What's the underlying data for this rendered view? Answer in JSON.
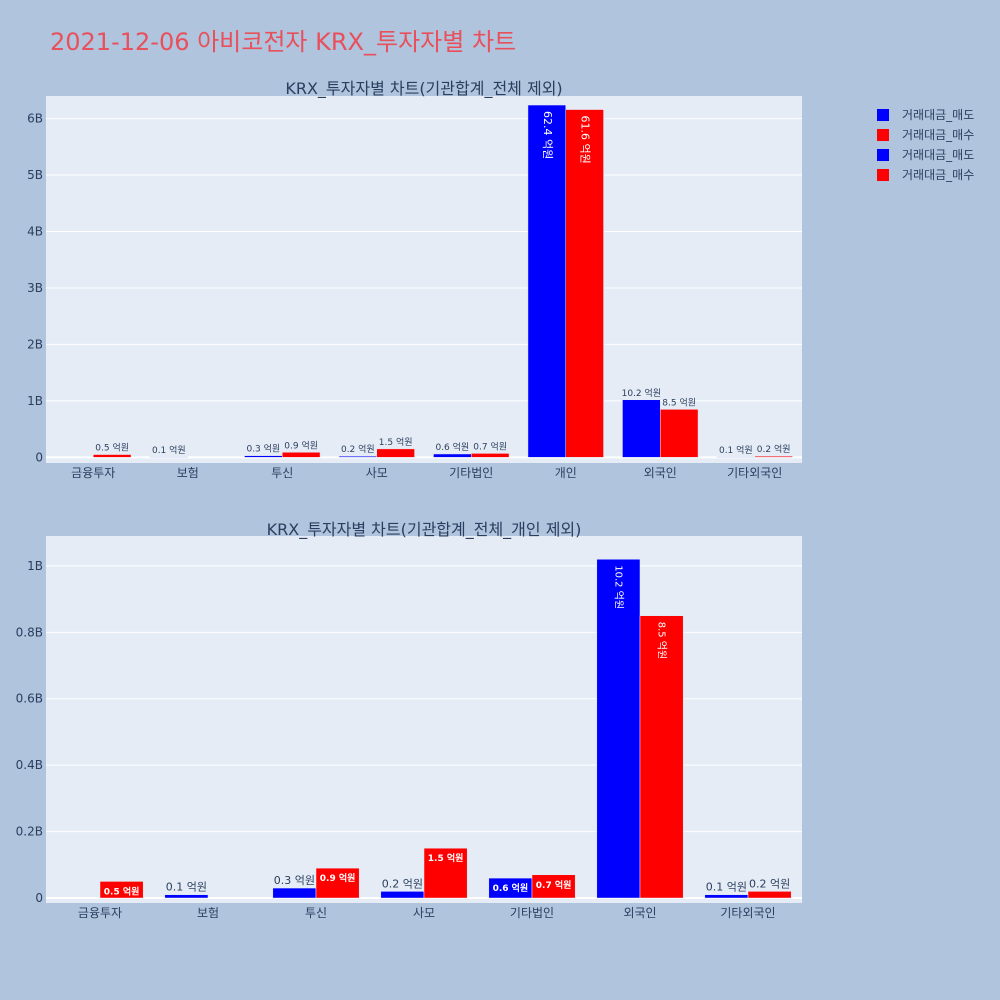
{
  "title": "2021-12-06 아비코전자 KRX_투자자별 차트",
  "colors": {
    "sell": "#0000ff",
    "buy": "#ff0000",
    "plot_bg": "#e5ecf6",
    "page_bg": "#b0c4de",
    "title": "#e8505b"
  },
  "legend": [
    {
      "label": "거래대금_매도",
      "color": "#0000ff"
    },
    {
      "label": "거래대금_매수",
      "color": "#ff0000"
    },
    {
      "label": "거래대금_매도",
      "color": "#0000ff"
    },
    {
      "label": "거래대금_매수",
      "color": "#ff0000"
    }
  ],
  "chart_data": [
    {
      "type": "bar",
      "title": "KRX_투자자별 차트(기관합계_전체 제외)",
      "categories": [
        "금융투자",
        "보험",
        "투신",
        "사모",
        "기타법인",
        "개인",
        "외국인",
        "기타외국인"
      ],
      "ylim": [
        -0.1,
        6.4
      ],
      "yticks": [
        0,
        1,
        2,
        3,
        4,
        5,
        6
      ],
      "ytick_labels": [
        "0",
        "1B",
        "2B",
        "3B",
        "4B",
        "5B",
        "6B"
      ],
      "series": [
        {
          "name": "거래대금_매도",
          "color": "#0000ff",
          "values": [
            0,
            0.01,
            0.03,
            0.02,
            0.06,
            6.24,
            1.02,
            0.01
          ],
          "labels": [
            "",
            "0.1 억원",
            "0.3 억원",
            "0.2 억원",
            "0.6 억원",
            "62.4 억원",
            "10.2 억원",
            "0.1 억원"
          ]
        },
        {
          "name": "거래대금_매수",
          "color": "#ff0000",
          "values": [
            0.05,
            0,
            0.09,
            0.15,
            0.07,
            6.16,
            0.85,
            0.02
          ],
          "labels": [
            "0.5 억원",
            "",
            "0.9 억원",
            "1.5 억원",
            "0.7 억원",
            "61.6 억원",
            "8.5 억원",
            "0.2 억원"
          ]
        }
      ]
    },
    {
      "type": "bar",
      "title": "KRX_투자자별 차트(기관합계_전체_개인 제외)",
      "categories": [
        "금융투자",
        "보험",
        "투신",
        "사모",
        "기타법인",
        "외국인",
        "기타외국인"
      ],
      "ylim": [
        -0.015,
        1.09
      ],
      "yticks": [
        0,
        0.2,
        0.4,
        0.6,
        0.8,
        1.0
      ],
      "ytick_labels": [
        "0",
        "0.2B",
        "0.4B",
        "0.6B",
        "0.8B",
        "1B"
      ],
      "series": [
        {
          "name": "거래대금_매도",
          "color": "#0000ff",
          "values": [
            0,
            0.01,
            0.03,
            0.02,
            0.06,
            1.02,
            0.01
          ],
          "labels": [
            "",
            "0.1 억원",
            "0.3 억원",
            "0.2 억원",
            "0.6 억원",
            "10.2 억원",
            "0.1 억원"
          ]
        },
        {
          "name": "거래대금_매수",
          "color": "#ff0000",
          "values": [
            0.05,
            0,
            0.09,
            0.15,
            0.07,
            0.85,
            0.02
          ],
          "labels": [
            "0.5 억원",
            "",
            "0.9 억원",
            "1.5 억원",
            "0.7 억원",
            "8.5 억원",
            "0.2 억원"
          ]
        }
      ]
    }
  ]
}
